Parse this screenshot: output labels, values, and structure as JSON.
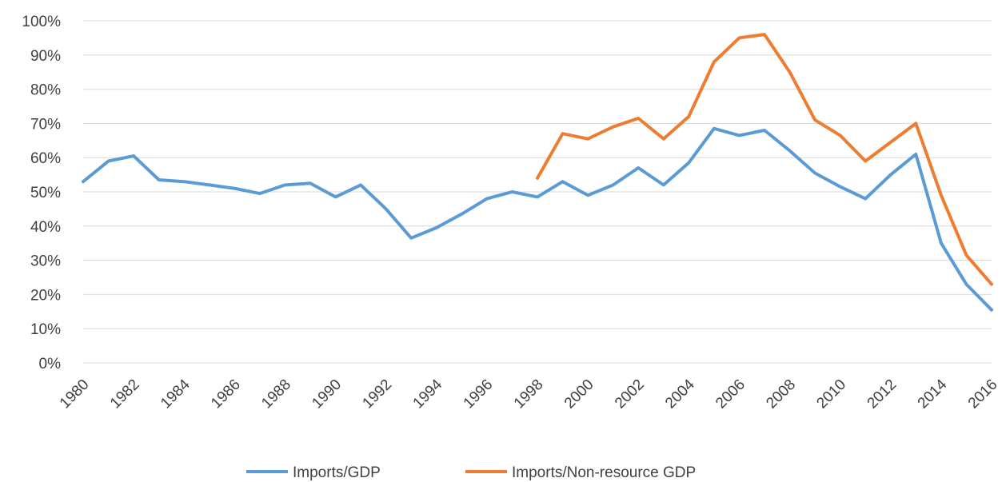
{
  "chart_data": {
    "type": "line",
    "title": "",
    "xlabel": "",
    "ylabel": "",
    "x": [
      1980,
      1981,
      1982,
      1983,
      1984,
      1985,
      1986,
      1987,
      1988,
      1989,
      1990,
      1991,
      1992,
      1993,
      1994,
      1995,
      1996,
      1997,
      1998,
      1999,
      2000,
      2001,
      2002,
      2003,
      2004,
      2005,
      2006,
      2007,
      2008,
      2009,
      2010,
      2011,
      2012,
      2013,
      2014,
      2015,
      2016
    ],
    "x_tick_labels": [
      "1980",
      "1982",
      "1984",
      "1986",
      "1988",
      "1990",
      "1992",
      "1994",
      "1996",
      "1998",
      "2000",
      "2002",
      "2004",
      "2006",
      "2008",
      "2010",
      "2012",
      "2014",
      "2016"
    ],
    "y_tick_labels": [
      "0%",
      "10%",
      "20%",
      "30%",
      "40%",
      "50%",
      "60%",
      "70%",
      "80%",
      "90%",
      "100%"
    ],
    "ylim": [
      0,
      100
    ],
    "grid": true,
    "legend_position": "bottom",
    "series": [
      {
        "name": "Imports/GDP",
        "color": "#5b9bd5",
        "values": [
          53,
          59,
          60.5,
          53.5,
          53,
          52,
          51,
          49.5,
          52,
          52.5,
          48.5,
          52,
          45,
          36.5,
          39.5,
          43.5,
          48,
          50,
          48.5,
          53,
          49,
          52,
          57,
          52,
          58.5,
          68.5,
          66.5,
          68,
          62,
          55.5,
          51.5,
          48,
          55,
          61,
          35,
          23,
          15.5
        ]
      },
      {
        "name": "Imports/Non-resource GDP",
        "color": "#ed7d31",
        "values": [
          null,
          null,
          null,
          null,
          null,
          null,
          null,
          null,
          null,
          null,
          null,
          null,
          null,
          null,
          null,
          null,
          null,
          null,
          54,
          67,
          65.5,
          69,
          71.5,
          65.5,
          72,
          88,
          95,
          96,
          85,
          71,
          66.5,
          59,
          64.5,
          70,
          49,
          31.5,
          23
        ]
      }
    ]
  }
}
